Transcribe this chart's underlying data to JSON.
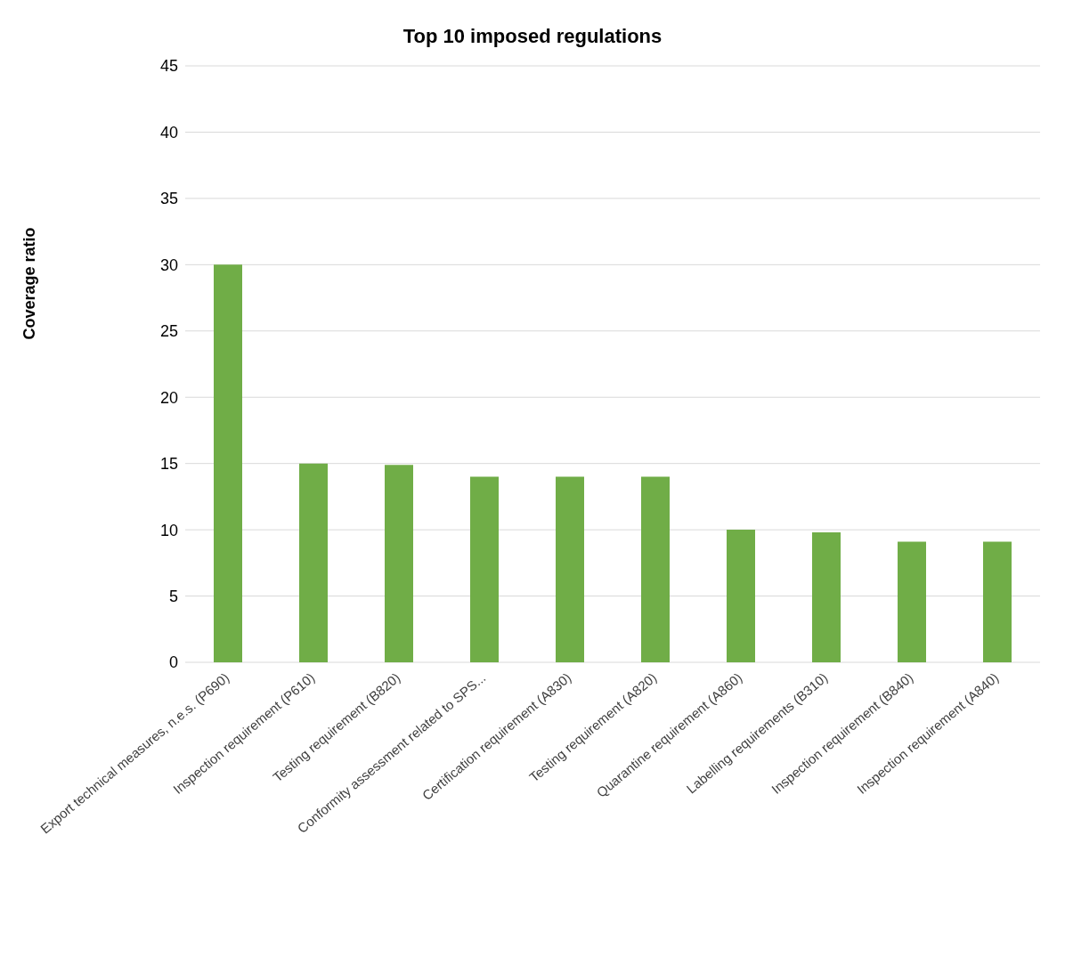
{
  "chart_data": {
    "type": "bar",
    "title": "Top 10 imposed regulations",
    "ylabel": "Coverage ratio",
    "categories": [
      "Export technical measures, n.e.s. (P690)",
      "Inspection requirement (P610)",
      "Testing requirement (B820)",
      "Conformity assessment related to SPS...",
      "Certification requirement (A830)",
      "Testing requirement (A820)",
      "Quarantine requirement (A860)",
      "Labelling requirements (B310)",
      "Inspection requirement (B840)",
      "Inspection requirement (A840)"
    ],
    "values": [
      30,
      15,
      14.9,
      14,
      14,
      14,
      10,
      9.8,
      9.1,
      9.1
    ],
    "color": "#70ad47",
    "ylim": [
      0,
      45
    ],
    "yticks": [
      0,
      5,
      10,
      15,
      20,
      25,
      30,
      35,
      40,
      45
    ],
    "grid": "y"
  }
}
